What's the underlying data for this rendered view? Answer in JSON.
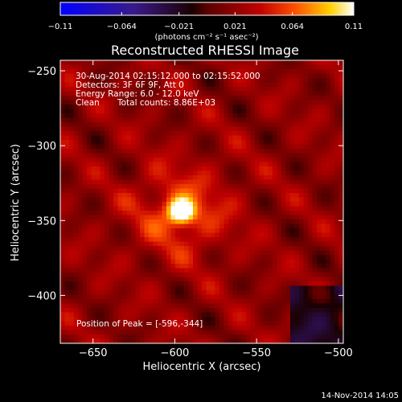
{
  "chart_data": {
    "type": "heatmap",
    "title": "Reconstructed RHESSI Image",
    "xlabel": "Heliocentric X (arcsec)",
    "ylabel": "Heliocentric Y (arcsec)",
    "xlim": [
      -670,
      -497
    ],
    "ylim": [
      -432,
      -243
    ],
    "x_ticks": [
      -650,
      -600,
      -550,
      -500
    ],
    "x_tick_labels": [
      "−650",
      "−600",
      "−550",
      "−500"
    ],
    "y_ticks": [
      -250,
      -300,
      -350,
      -400
    ],
    "y_tick_labels": [
      "−250",
      "−300",
      "−350",
      "−400"
    ],
    "colorbar": {
      "range": [
        -0.11,
        0.11
      ],
      "ticks": [
        -0.11,
        -0.064,
        -0.021,
        0.021,
        0.064,
        0.11
      ],
      "tick_labels": [
        "−0.11",
        "−0.064",
        "−0.021",
        "0.021",
        "0.064",
        "0.11"
      ],
      "unit_label": "(photons cm⁻² s⁻¹ asec⁻²)",
      "colormap": "fire",
      "colors": [
        "#0000ff",
        "#4b0082",
        "#000000",
        "#8b0000",
        "#ff4500",
        "#ffd700",
        "#ffffff"
      ]
    },
    "annotations": {
      "time_range": "30-Aug-2014 02:15:12.000 to 02:15:52.000",
      "detectors": "Detectors: 3F 6F 9F, Att 0",
      "energy_range": "Energy Range: 6.0 - 12.0 keV",
      "clean": "Clean",
      "total_counts": "Total counts: 8.86E+03",
      "peak": "Position of Peak = [-596,-344]"
    },
    "peak": {
      "x": -596,
      "y": -344,
      "value": 0.11
    },
    "footer_date": "14-Nov-2014 14:05"
  }
}
